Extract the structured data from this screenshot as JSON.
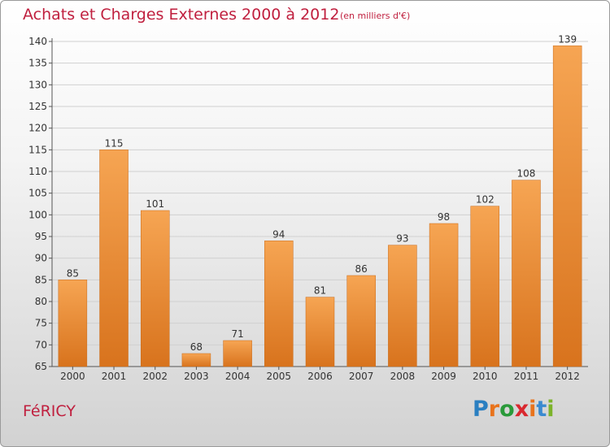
{
  "header": {
    "title": "Achats et Charges Externes 2000 à 2012",
    "subtitle": "(en milliers d'€)"
  },
  "footer": {
    "commune": "FéRICY",
    "logo_letters": [
      "P",
      "r",
      "o",
      "x",
      "i",
      "t",
      "i"
    ],
    "logo_colors": [
      "#2a7fc1",
      "#e8731c",
      "#2a9a3a",
      "#d9282f",
      "#e8731c",
      "#3a8ad0",
      "#7cb32b"
    ]
  },
  "colors": {
    "bar_top": "#f6a553",
    "bar_bottom": "#d8731d",
    "text": "#333333",
    "axis": "#555555",
    "grid": "#d0d0d0"
  },
  "chart_data": {
    "type": "bar",
    "title": "Achats et Charges Externes 2000 à 2012",
    "subtitle": "(en milliers d'€)",
    "categories": [
      "2000",
      "2001",
      "2002",
      "2003",
      "2004",
      "2005",
      "2006",
      "2007",
      "2008",
      "2009",
      "2010",
      "2011",
      "2012"
    ],
    "values": [
      85,
      115,
      101,
      68,
      71,
      94,
      81,
      86,
      93,
      98,
      102,
      108,
      139
    ],
    "ylim": [
      65,
      140
    ],
    "yticks": [
      65,
      70,
      75,
      80,
      85,
      90,
      95,
      100,
      105,
      110,
      115,
      120,
      125,
      130,
      135,
      140
    ],
    "xlabel": "",
    "ylabel": "",
    "grid": true
  }
}
